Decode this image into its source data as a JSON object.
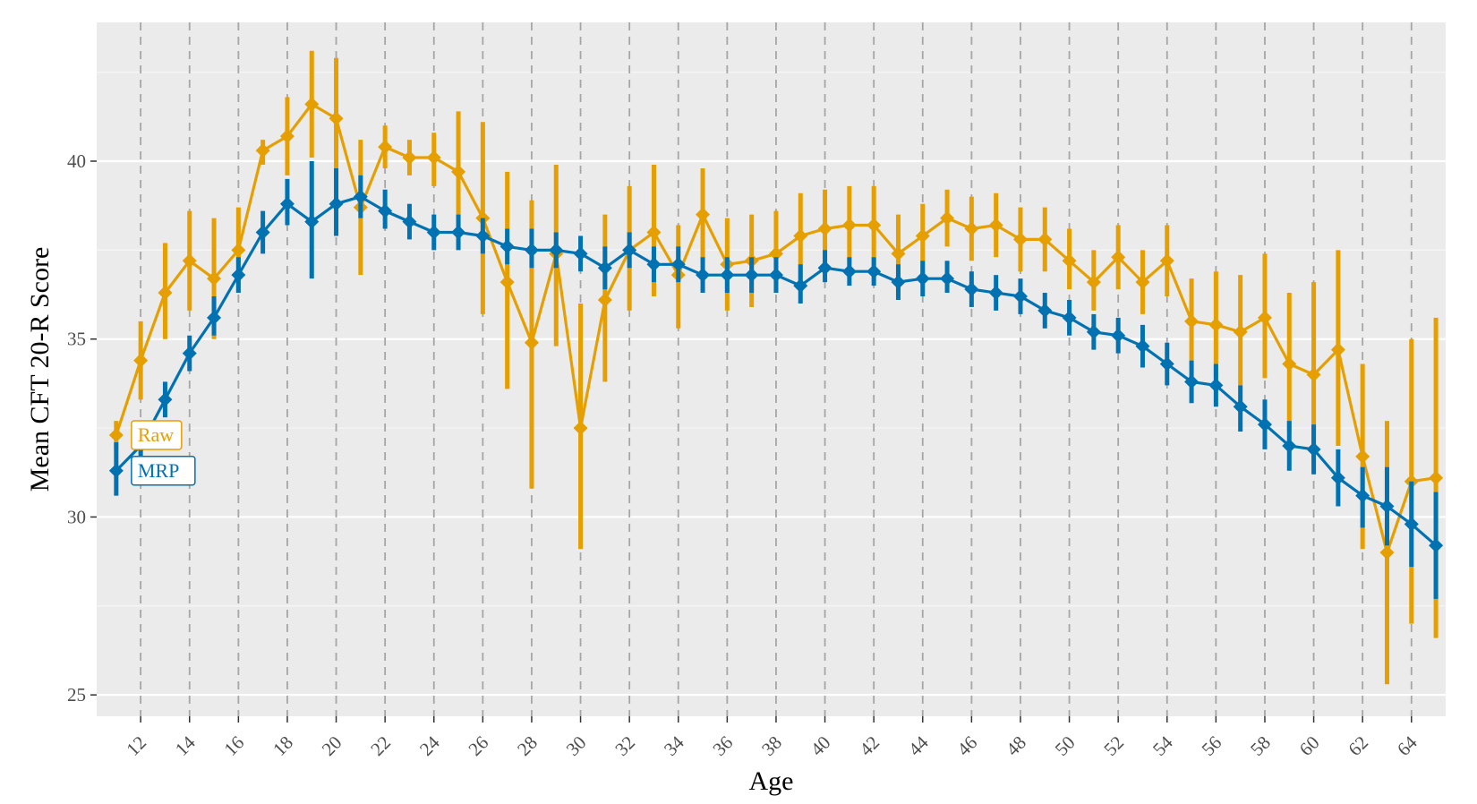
{
  "chart_data": {
    "type": "line",
    "title": "",
    "xlabel": "Age",
    "ylabel": "Mean CFT 20-R Score",
    "xlim": [
      10.2,
      65.4
    ],
    "ylim": [
      24.4,
      43.9
    ],
    "xticks": [
      12,
      14,
      16,
      18,
      20,
      22,
      24,
      26,
      28,
      30,
      32,
      34,
      36,
      38,
      40,
      42,
      44,
      46,
      48,
      50,
      52,
      54,
      56,
      58,
      60,
      62,
      64
    ],
    "yticks": [
      25,
      30,
      35,
      40
    ],
    "grid": true,
    "legend": "direct labels at left end of lines",
    "x": [
      11,
      12,
      13,
      14,
      15,
      16,
      17,
      18,
      19,
      20,
      21,
      22,
      23,
      24,
      25,
      26,
      27,
      28,
      29,
      30,
      31,
      32,
      33,
      34,
      35,
      36,
      37,
      38,
      39,
      40,
      41,
      42,
      43,
      44,
      45,
      46,
      47,
      48,
      49,
      50,
      51,
      52,
      53,
      54,
      55,
      56,
      57,
      58,
      59,
      60,
      61,
      62,
      63,
      64,
      65
    ],
    "series": [
      {
        "name": "Raw",
        "color": "#E69F00",
        "values": [
          32.3,
          34.4,
          36.3,
          37.2,
          36.7,
          37.5,
          40.3,
          40.7,
          41.6,
          41.2,
          38.7,
          40.4,
          40.1,
          40.1,
          39.7,
          38.4,
          36.6,
          34.9,
          37.4,
          32.5,
          36.1,
          37.5,
          38.0,
          36.8,
          38.5,
          37.1,
          37.2,
          37.4,
          37.9,
          38.1,
          38.2,
          38.2,
          37.4,
          37.9,
          38.4,
          38.1,
          38.2,
          37.8,
          37.8,
          37.2,
          36.6,
          37.3,
          36.6,
          37.2,
          35.5,
          35.4,
          35.2,
          35.6,
          34.3,
          34.0,
          34.7,
          31.7,
          29.0,
          31.0,
          31.1
        ],
        "lower": [
          31.9,
          33.3,
          35.0,
          35.8,
          35.0,
          36.3,
          39.9,
          39.6,
          40.1,
          39.5,
          36.8,
          39.8,
          39.6,
          39.3,
          38.0,
          35.7,
          33.6,
          30.8,
          34.8,
          29.1,
          33.8,
          35.8,
          36.2,
          35.3,
          37.2,
          35.8,
          35.9,
          36.3,
          36.6,
          37.0,
          37.1,
          37.1,
          36.3,
          36.8,
          37.6,
          37.2,
          37.3,
          36.9,
          36.9,
          36.4,
          35.8,
          36.4,
          35.7,
          36.2,
          34.4,
          33.9,
          33.7,
          33.9,
          32.4,
          31.5,
          32.0,
          29.1,
          25.3,
          27.0,
          26.6
        ],
        "upper": [
          32.7,
          35.5,
          37.7,
          38.6,
          38.4,
          38.7,
          40.6,
          41.8,
          43.1,
          42.9,
          40.6,
          41.0,
          40.6,
          40.8,
          41.4,
          41.1,
          39.7,
          38.9,
          39.9,
          36.0,
          38.5,
          39.3,
          39.9,
          38.2,
          39.8,
          38.4,
          38.5,
          38.6,
          39.1,
          39.2,
          39.3,
          39.3,
          38.5,
          38.8,
          39.2,
          39.0,
          39.1,
          38.7,
          38.7,
          38.1,
          37.5,
          38.2,
          37.5,
          38.2,
          36.7,
          36.9,
          36.8,
          37.4,
          36.3,
          36.6,
          37.5,
          34.3,
          32.7,
          35.0,
          35.6
        ]
      },
      {
        "name": "MRP",
        "color": "#0072B2",
        "values": [
          31.3,
          32.0,
          33.3,
          34.6,
          35.6,
          36.8,
          38.0,
          38.8,
          38.3,
          38.8,
          39.0,
          38.6,
          38.3,
          38.0,
          38.0,
          37.9,
          37.6,
          37.5,
          37.5,
          37.4,
          37.0,
          37.5,
          37.1,
          37.1,
          36.8,
          36.8,
          36.8,
          36.8,
          36.5,
          37.0,
          36.9,
          36.9,
          36.6,
          36.7,
          36.7,
          36.4,
          36.3,
          36.2,
          35.8,
          35.6,
          35.2,
          35.1,
          34.8,
          34.3,
          33.8,
          33.7,
          33.1,
          32.6,
          32.0,
          31.9,
          31.1,
          30.6,
          30.3,
          29.8,
          29.2
        ],
        "lower": [
          30.6,
          31.4,
          32.8,
          34.1,
          35.1,
          36.3,
          37.4,
          38.2,
          36.7,
          37.9,
          38.4,
          38.1,
          37.8,
          37.5,
          37.5,
          37.4,
          37.1,
          37.0,
          37.0,
          36.9,
          36.4,
          37.0,
          36.6,
          36.6,
          36.3,
          36.3,
          36.3,
          36.3,
          36.0,
          36.6,
          36.5,
          36.5,
          36.1,
          36.2,
          36.3,
          35.9,
          35.8,
          35.7,
          35.3,
          35.1,
          34.7,
          34.6,
          34.2,
          33.7,
          33.2,
          33.1,
          32.4,
          31.9,
          31.3,
          31.2,
          30.3,
          29.7,
          29.2,
          28.6,
          27.7
        ],
        "upper": [
          32.1,
          32.6,
          33.8,
          35.1,
          36.2,
          37.3,
          38.6,
          39.5,
          40.0,
          39.8,
          39.6,
          39.2,
          38.8,
          38.5,
          38.5,
          38.4,
          38.1,
          38.1,
          38.0,
          37.9,
          37.6,
          38.0,
          37.6,
          37.6,
          37.3,
          37.3,
          37.3,
          37.3,
          37.1,
          37.5,
          37.3,
          37.3,
          37.1,
          37.2,
          37.2,
          36.9,
          36.8,
          36.7,
          36.3,
          36.1,
          35.7,
          35.6,
          35.4,
          34.9,
          34.4,
          34.3,
          33.7,
          33.3,
          32.7,
          32.6,
          31.9,
          31.4,
          31.4,
          31.0,
          30.7
        ]
      }
    ]
  }
}
